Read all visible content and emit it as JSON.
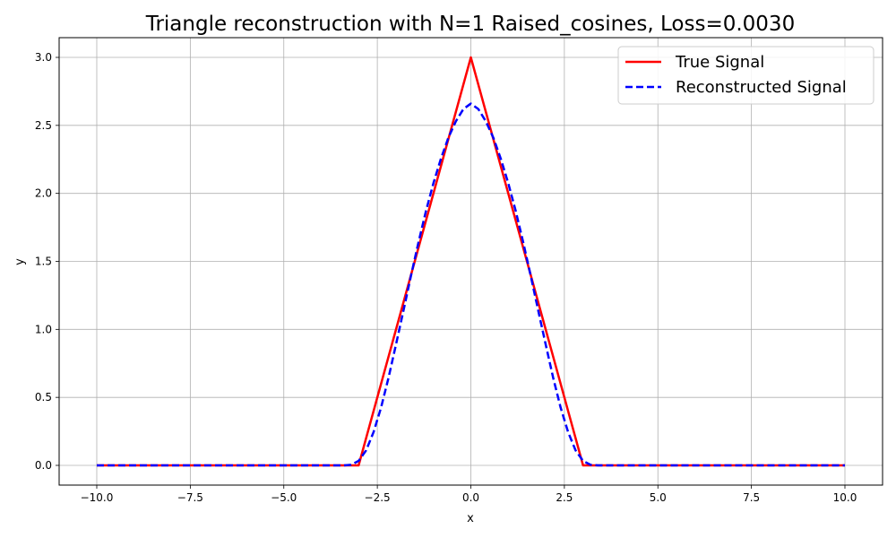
{
  "chart_data": {
    "type": "line",
    "title": "Triangle reconstruction with N=1 Raised_cosines, Loss=0.0030",
    "xlabel": "x",
    "ylabel": "y",
    "xlim": [
      -10.0,
      10.0
    ],
    "ylim": [
      0.0,
      3.0
    ],
    "xticks": [
      "−10.0",
      "−7.5",
      "−5.0",
      "−2.5",
      "0.0",
      "2.5",
      "5.0",
      "7.5",
      "10.0"
    ],
    "yticks": [
      "0.0",
      "0.5",
      "1.0",
      "1.5",
      "2.0",
      "2.5",
      "3.0"
    ],
    "grid": true,
    "legend_position": "top-right",
    "series": [
      {
        "name": "True Signal",
        "color": "#ff0000",
        "style": "solid",
        "x": [
          -10,
          -3,
          0,
          3,
          10
        ],
        "y": [
          0,
          0,
          3,
          0,
          0
        ]
      },
      {
        "name": "Reconstructed Signal",
        "color": "#0000ff",
        "style": "dashed",
        "x": [
          -10,
          -3.4,
          -3.2,
          -3.0,
          -2.8,
          -2.6,
          -2.4,
          -2.2,
          -2.0,
          -1.8,
          -1.6,
          -1.4,
          -1.2,
          -1.0,
          -0.8,
          -0.6,
          -0.4,
          -0.2,
          0.0,
          0.2,
          0.4,
          0.6,
          0.8,
          1.0,
          1.2,
          1.4,
          1.6,
          1.8,
          2.0,
          2.2,
          2.4,
          2.6,
          2.8,
          3.0,
          3.2,
          3.4,
          10
        ],
        "y": [
          0,
          0,
          0.004,
          0.033,
          0.11,
          0.245,
          0.425,
          0.645,
          0.89,
          1.14,
          1.395,
          1.64,
          1.87,
          2.075,
          2.255,
          2.41,
          2.53,
          2.62,
          2.66,
          2.62,
          2.53,
          2.41,
          2.255,
          2.075,
          1.87,
          1.64,
          1.395,
          1.14,
          0.89,
          0.645,
          0.425,
          0.245,
          0.11,
          0.033,
          0.004,
          0,
          0
        ]
      }
    ]
  }
}
